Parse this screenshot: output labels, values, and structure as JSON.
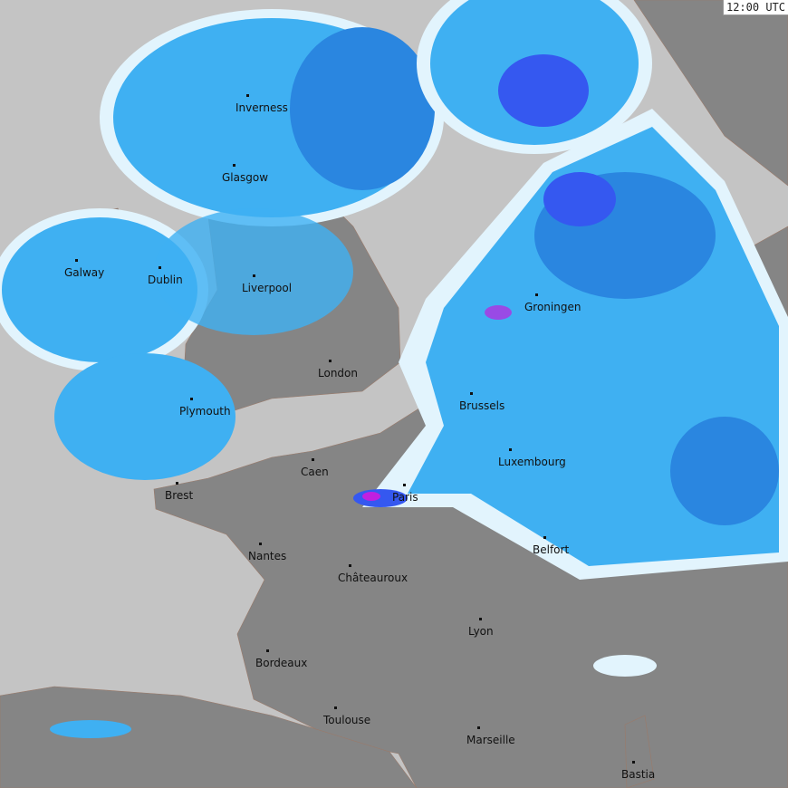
{
  "timestamp": "12:00 UTC",
  "colors": {
    "sea": "#c4c4c4",
    "land": "#858585",
    "radar_light": "#e2f4fd",
    "radar_low": "#3fb0f2",
    "radar_mid": "#2a86e0",
    "radar_high": "#3558f0",
    "radar_extreme": "#c020e0"
  },
  "cities": [
    {
      "name": "Inverness"
    },
    {
      "name": "Glasgow"
    },
    {
      "name": "Galway"
    },
    {
      "name": "Dublin"
    },
    {
      "name": "Liverpool"
    },
    {
      "name": "London"
    },
    {
      "name": "Groningen"
    },
    {
      "name": "Brussels"
    },
    {
      "name": "Plymouth"
    },
    {
      "name": "Luxembourg"
    },
    {
      "name": "Caen"
    },
    {
      "name": "Brest"
    },
    {
      "name": "Paris"
    },
    {
      "name": "Belfort"
    },
    {
      "name": "Nantes"
    },
    {
      "name": "Châteauroux"
    },
    {
      "name": "Lyon"
    },
    {
      "name": "Bordeaux"
    },
    {
      "name": "Toulouse"
    },
    {
      "name": "Marseille"
    },
    {
      "name": "Bastia"
    }
  ]
}
